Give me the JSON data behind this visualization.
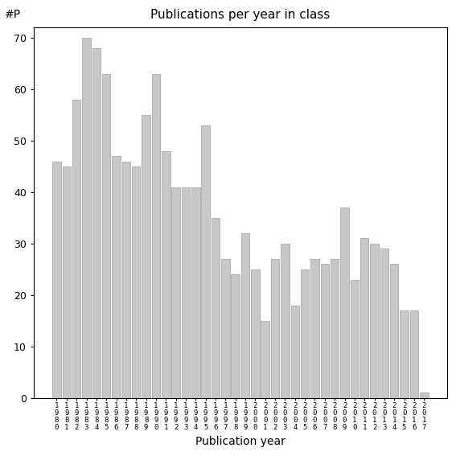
{
  "title": "Publications per year in class",
  "xlabel": "Publication year",
  "ylabel": "#P",
  "bar_color": "#c8c8c8",
  "edge_color": "#a0a0a0",
  "background_color": "#ffffff",
  "years": [
    "1\n9\n8\n0",
    "1\n9\n8\n1",
    "1\n9\n8\n2",
    "1\n9\n8\n3",
    "1\n9\n8\n4",
    "1\n9\n8\n5",
    "1\n9\n8\n6",
    "1\n9\n8\n7",
    "1\n9\n8\n8",
    "1\n9\n8\n9",
    "1\n9\n9\n0",
    "1\n9\n9\n1",
    "1\n9\n9\n2",
    "1\n9\n9\n3",
    "1\n9\n9\n4",
    "1\n9\n9\n5",
    "1\n9\n9\n6",
    "1\n9\n9\n7",
    "1\n9\n9\n8",
    "1\n9\n9\n9",
    "2\n0\n0\n0",
    "2\n0\n0\n1",
    "2\n0\n0\n2",
    "2\n0\n0\n3",
    "2\n0\n0\n4",
    "2\n0\n0\n5",
    "2\n0\n0\n6",
    "2\n0\n0\n7",
    "2\n0\n0\n8",
    "2\n0\n0\n9",
    "2\n0\n1\n0",
    "2\n0\n1\n1",
    "2\n0\n1\n2",
    "2\n0\n1\n3",
    "2\n0\n1\n4",
    "2\n0\n1\n5",
    "2\n0\n1\n6",
    "2\n0\n1\n7"
  ],
  "values": [
    46,
    45,
    58,
    70,
    68,
    63,
    47,
    46,
    45,
    55,
    63,
    48,
    41,
    41,
    41,
    53,
    35,
    27,
    24,
    32,
    25,
    15,
    27,
    30,
    18,
    25,
    27,
    26,
    27,
    37,
    23,
    31,
    30,
    29,
    26,
    17,
    17,
    1
  ],
  "ylim": [
    0,
    72
  ],
  "yticks": [
    0,
    10,
    20,
    30,
    40,
    50,
    60,
    70
  ],
  "figsize": [
    5.67,
    5.67
  ],
  "dpi": 100
}
